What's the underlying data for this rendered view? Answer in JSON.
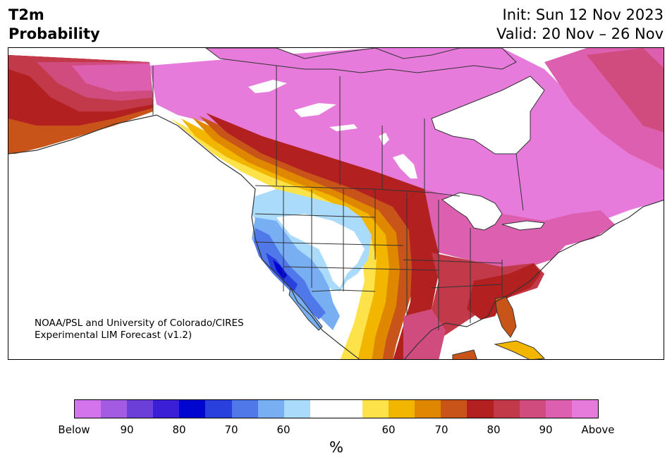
{
  "title": {
    "line1": "T2m",
    "line2": "Probability"
  },
  "init": {
    "line1": "Init: Sun 12 Nov 2023",
    "line2": "Valid: 20 Nov – 26 Nov"
  },
  "credit": {
    "line1": "NOAA/PSL and University of Colorado/CIRES",
    "line2": "Experimental LIM Forecast (v1.2)"
  },
  "map": {
    "region": "North America",
    "shading": "probability of above/below normal 2m temperature",
    "land_no_signal_color": "#ffffff",
    "border_color": "#333333"
  },
  "colorbar": {
    "unit_label": "%",
    "colors": [
      "#d474ec",
      "#a35be3",
      "#6c3fd9",
      "#3a1fd6",
      "#0006d0",
      "#2a40dd",
      "#5178e8",
      "#78aff2",
      "#aadbfb",
      "#ffffff",
      "#ffffff",
      "#fde24a",
      "#f2b600",
      "#e08700",
      "#c8541a",
      "#b22020",
      "#c23a4a",
      "#d14c7e",
      "#dd5faf",
      "#e67bdb"
    ],
    "tick_labels": [
      "Below",
      "90",
      "80",
      "70",
      "60",
      "60",
      "70",
      "80",
      "90",
      "Above"
    ]
  }
}
